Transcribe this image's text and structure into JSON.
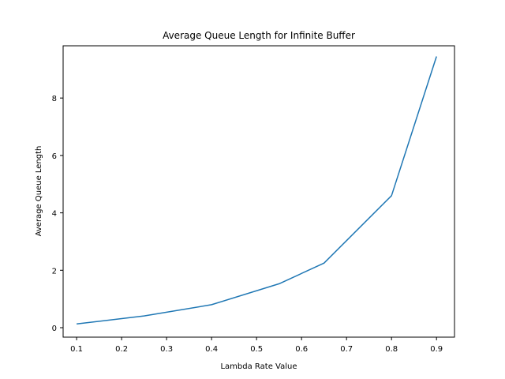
{
  "chart_data": {
    "type": "line",
    "title": "Average Queue Length for Infinite Buffer",
    "xlabel": "Lambda Rate Value",
    "ylabel": "Average Queue Length",
    "xlim": [
      0.07,
      0.94
    ],
    "ylim": [
      -0.33,
      9.82
    ],
    "xticks": [
      0.1,
      0.2,
      0.3,
      0.4,
      0.5,
      0.6,
      0.7,
      0.8,
      0.9
    ],
    "xtick_labels": [
      "0.1",
      "0.2",
      "0.3",
      "0.4",
      "0.5",
      "0.6",
      "0.7",
      "0.8",
      "0.9"
    ],
    "yticks": [
      0,
      2,
      4,
      6,
      8
    ],
    "ytick_labels": [
      "0",
      "2",
      "4",
      "6",
      "8"
    ],
    "grid": false,
    "series": [
      {
        "color": "#1f77b4",
        "x": [
          0.1,
          0.25,
          0.4,
          0.55,
          0.65,
          0.8,
          0.9
        ],
        "y": [
          0.13,
          0.41,
          0.8,
          1.53,
          2.25,
          4.6,
          9.45
        ]
      }
    ]
  }
}
